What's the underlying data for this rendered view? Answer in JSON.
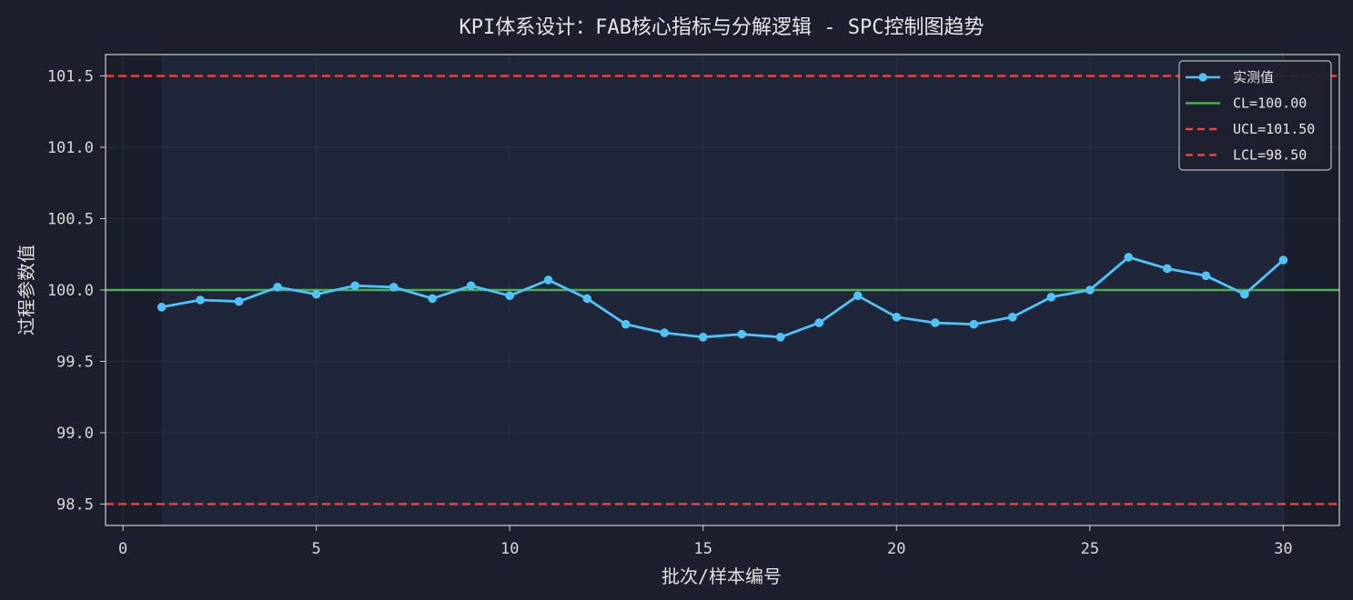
{
  "chart_data": {
    "type": "line",
    "title": "KPI体系设计：FAB核心指标与分解逻辑 - SPC控制图趋势",
    "xlabel": "批次/样本编号",
    "ylabel": "过程参数值",
    "xlim": [
      -0.45,
      31.45
    ],
    "ylim": [
      98.35,
      101.65
    ],
    "xticks": [
      0,
      5,
      10,
      15,
      20,
      25,
      30
    ],
    "xtick_labels": [
      "0",
      "5",
      "10",
      "15",
      "20",
      "25",
      "30"
    ],
    "yticks": [
      98.5,
      99.0,
      99.5,
      100.0,
      100.5,
      101.0,
      101.5
    ],
    "ytick_labels": [
      "98.5",
      "99.0",
      "99.5",
      "100.0",
      "100.5",
      "101.0",
      "101.5"
    ],
    "grid": true,
    "legend_position": "top-right",
    "shaded_x_range": [
      1,
      30
    ],
    "series": [
      {
        "name": "实测值",
        "color": "#4fc3f7",
        "x": [
          1,
          2,
          3,
          4,
          5,
          6,
          7,
          8,
          9,
          10,
          11,
          12,
          13,
          14,
          15,
          16,
          17,
          18,
          19,
          20,
          21,
          22,
          23,
          24,
          25,
          26,
          27,
          28,
          29,
          30
        ],
        "y": [
          99.88,
          99.93,
          99.92,
          100.02,
          99.97,
          100.03,
          100.02,
          99.94,
          100.03,
          99.96,
          100.07,
          99.94,
          99.76,
          99.7,
          99.67,
          99.69,
          99.67,
          99.77,
          99.96,
          99.81,
          99.77,
          99.76,
          99.81,
          99.95,
          100.0,
          100.23,
          100.15,
          100.1,
          99.97,
          100.21
        ]
      }
    ],
    "control_lines": [
      {
        "name": "CL=100.00",
        "value": 100.0,
        "color": "#4caf50",
        "style": "solid"
      },
      {
        "name": "UCL=101.50",
        "value": 101.5,
        "color": "#f44336",
        "style": "dashed"
      },
      {
        "name": "LCL=98.50",
        "value": 98.5,
        "color": "#f44336",
        "style": "dashed"
      }
    ]
  }
}
